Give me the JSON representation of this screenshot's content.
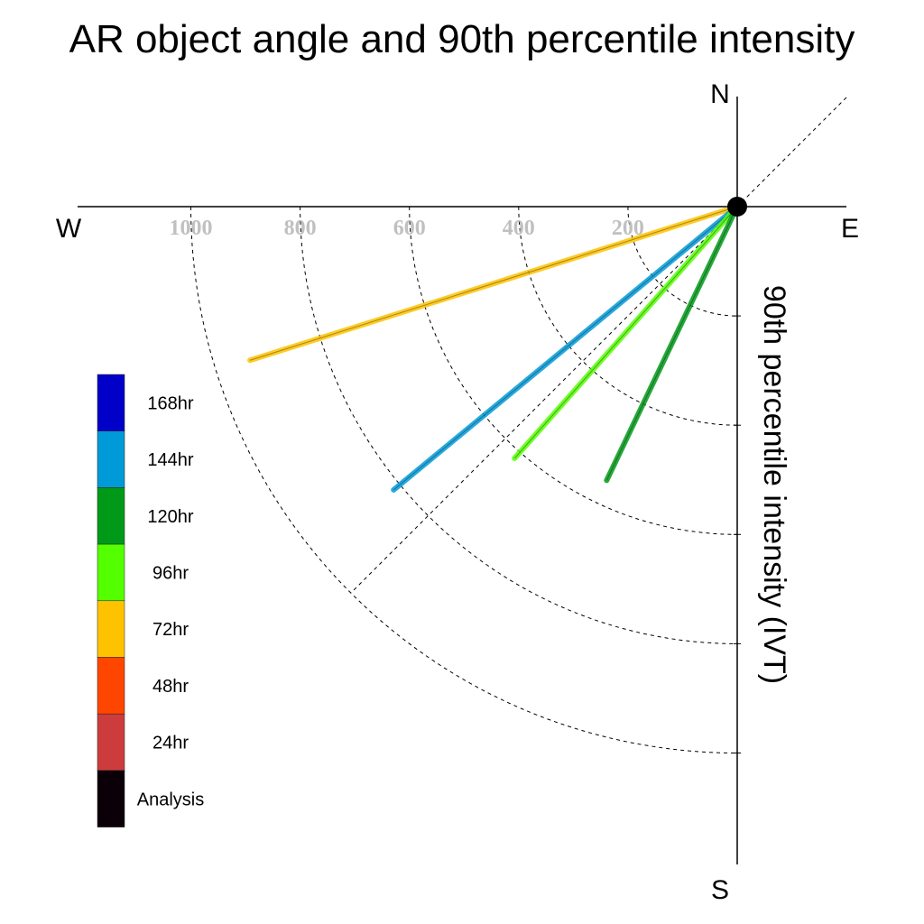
{
  "chart_data": {
    "type": "polar",
    "title": "AR object angle and 90th percentile intensity",
    "ylabel": "90th percentile intensity (IVT)",
    "compass": {
      "n": "N",
      "s": "S",
      "e": "E",
      "w": "W"
    },
    "r_ticks": [
      200,
      400,
      600,
      800,
      1000
    ],
    "r_tick_labels": [
      "200",
      "400",
      "600",
      "800",
      "1000"
    ],
    "r_max": 1000,
    "angle_reference": "degrees clockwise from north",
    "series": [
      {
        "name": "72hr",
        "color": "#ffc200",
        "angle_deg": 252.5,
        "intensity": 935
      },
      {
        "name": "144hr",
        "color": "#009ad8",
        "angle_deg": 230.5,
        "intensity": 815
      },
      {
        "name": "96hr",
        "color": "#54ff00",
        "angle_deg": 221.5,
        "intensity": 615
      },
      {
        "name": "120hr",
        "color": "#009a18",
        "angle_deg": 205.5,
        "intensity": 555
      }
    ],
    "legend": [
      {
        "label": "168hr",
        "color": "#0000c8"
      },
      {
        "label": "144hr",
        "color": "#009ad8"
      },
      {
        "label": "120hr",
        "color": "#009a18"
      },
      {
        "label": "96hr",
        "color": "#54ff00"
      },
      {
        "label": "72hr",
        "color": "#ffc200"
      },
      {
        "label": "48hr",
        "color": "#ff4600"
      },
      {
        "label": "24hr",
        "color": "#cd3c3c"
      },
      {
        "label": "Analysis",
        "color": "#0c0008"
      }
    ],
    "legend_placement": "left"
  }
}
